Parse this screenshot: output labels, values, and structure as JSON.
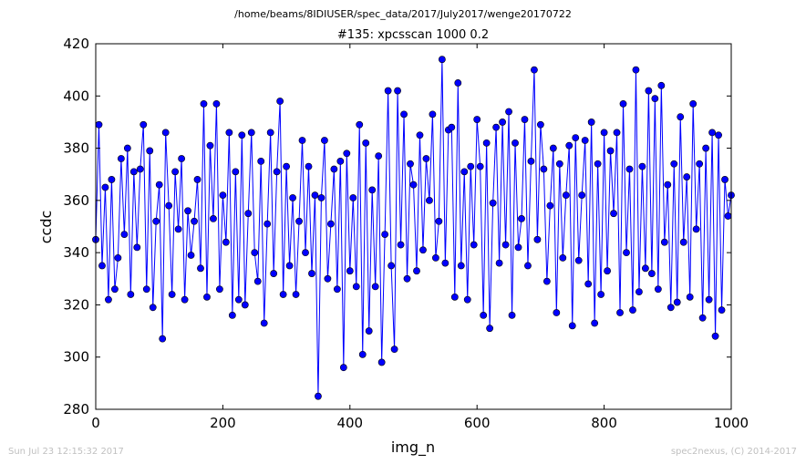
{
  "suptitle": "/home/beams/8IDIUSER/spec_data/2017/July2017/wenge20170722",
  "footer_left": "Sun Jul 23 12:15:32 2017",
  "footer_right": "spec2nexus, (C) 2014-2017",
  "chart_data": {
    "type": "line",
    "title": "#135: xpcsscan 1000 0.2",
    "xlabel": "img_n",
    "ylabel": "ccdc",
    "xlim": [
      0,
      1000
    ],
    "ylim": [
      280,
      420
    ],
    "xticks": [
      0,
      200,
      400,
      600,
      800,
      1000
    ],
    "yticks": [
      280,
      300,
      320,
      340,
      360,
      380,
      400,
      420
    ],
    "grid": false,
    "legend": "none",
    "series": [
      {
        "color": "#0000ff",
        "marker": "circle",
        "x": [
          0,
          5,
          10,
          15,
          20,
          25,
          30,
          35,
          40,
          45,
          50,
          55,
          60,
          65,
          70,
          75,
          80,
          85,
          90,
          95,
          100,
          105,
          110,
          115,
          120,
          125,
          130,
          135,
          140,
          145,
          150,
          155,
          160,
          165,
          170,
          175,
          180,
          185,
          190,
          195,
          200,
          205,
          210,
          215,
          220,
          225,
          230,
          235,
          240,
          245,
          250,
          255,
          260,
          265,
          270,
          275,
          280,
          285,
          290,
          295,
          300,
          305,
          310,
          315,
          320,
          325,
          330,
          335,
          340,
          345,
          350,
          355,
          360,
          365,
          370,
          375,
          380,
          385,
          390,
          395,
          400,
          405,
          410,
          415,
          420,
          425,
          430,
          435,
          440,
          445,
          450,
          455,
          460,
          465,
          470,
          475,
          480,
          485,
          490,
          495,
          500,
          505,
          510,
          515,
          520,
          525,
          530,
          535,
          540,
          545,
          550,
          555,
          560,
          565,
          570,
          575,
          580,
          585,
          590,
          595,
          600,
          605,
          610,
          615,
          620,
          625,
          630,
          635,
          640,
          645,
          650,
          655,
          660,
          665,
          670,
          675,
          680,
          685,
          690,
          695,
          700,
          705,
          710,
          715,
          720,
          725,
          730,
          735,
          740,
          745,
          750,
          755,
          760,
          765,
          770,
          775,
          780,
          785,
          790,
          795,
          800,
          805,
          810,
          815,
          820,
          825,
          830,
          835,
          840,
          845,
          850,
          855,
          860,
          865,
          870,
          875,
          880,
          885,
          890,
          895,
          900,
          905,
          910,
          915,
          920,
          925,
          930,
          935,
          940,
          945,
          950,
          955,
          960,
          965,
          970,
          975,
          980,
          985,
          990,
          995,
          1000
        ],
        "y": [
          345,
          389,
          335,
          365,
          322,
          368,
          326,
          338,
          376,
          347,
          380,
          324,
          371,
          342,
          372,
          389,
          326,
          379,
          319,
          352,
          366,
          307,
          386,
          358,
          324,
          371,
          349,
          376,
          322,
          356,
          339,
          352,
          368,
          334,
          397,
          323,
          381,
          353,
          397,
          326,
          362,
          344,
          386,
          316,
          371,
          322,
          385,
          320,
          355,
          386,
          340,
          329,
          375,
          313,
          351,
          386,
          332,
          371,
          398,
          324,
          373,
          335,
          361,
          324,
          352,
          383,
          340,
          373,
          332,
          362,
          285,
          361,
          383,
          330,
          351,
          372,
          326,
          375,
          296,
          378,
          333,
          361,
          327,
          389,
          301,
          382,
          310,
          364,
          327,
          377,
          298,
          347,
          402,
          335,
          303,
          402,
          343,
          393,
          330,
          374,
          366,
          333,
          385,
          341,
          376,
          360,
          393,
          338,
          352,
          414,
          336,
          387,
          388,
          323,
          405,
          335,
          371,
          322,
          373,
          343,
          391,
          373,
          316,
          382,
          311,
          359,
          388,
          336,
          390,
          343,
          394,
          316,
          382,
          342,
          353,
          391,
          335,
          375,
          410,
          345,
          389,
          372,
          329,
          358,
          380,
          317,
          374,
          338,
          362,
          381,
          312,
          384,
          337,
          362,
          383,
          328,
          390,
          313,
          374,
          324,
          386,
          333,
          379,
          355,
          386,
          317,
          397,
          340,
          372,
          318,
          410,
          325,
          373,
          334,
          402,
          332,
          399,
          326,
          404,
          344,
          366,
          319,
          374,
          321,
          392,
          344,
          369,
          323,
          397,
          349,
          374,
          315,
          380,
          322,
          386,
          308,
          385,
          318,
          368,
          354,
          362
        ]
      }
    ]
  }
}
